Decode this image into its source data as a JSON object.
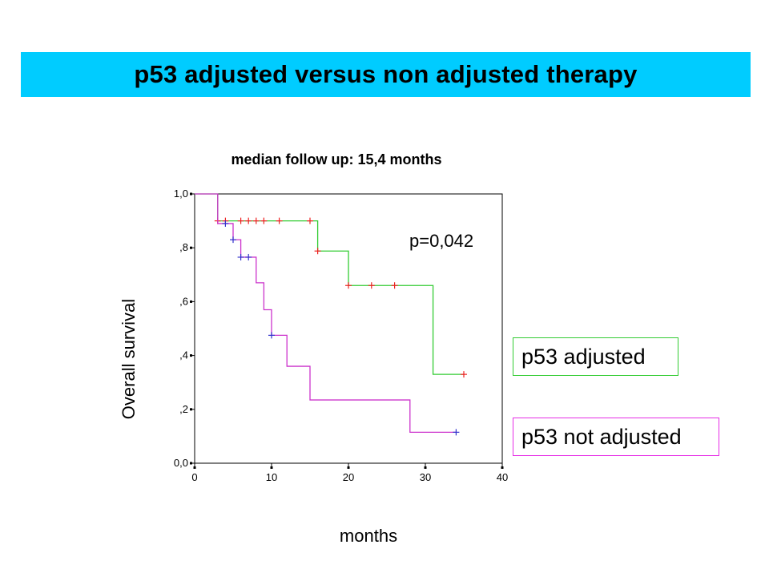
{
  "title": "p53 adjusted versus non adjusted therapy",
  "chart_data": {
    "type": "line",
    "subtitle": "median follow up: 15,4 months",
    "xlabel": "months",
    "ylabel": "Overall survival",
    "xlim": [
      0,
      40
    ],
    "ylim": [
      0,
      1
    ],
    "x_ticks": [
      0,
      10,
      20,
      30,
      40
    ],
    "x_tick_labels": [
      "0",
      "10",
      "20",
      "30",
      "40"
    ],
    "y_ticks": [
      0,
      0.2,
      0.4,
      0.6,
      0.8,
      1.0
    ],
    "y_tick_labels": [
      "0,0",
      ",2",
      ",4",
      ",6",
      ",8",
      "1,0"
    ],
    "grid": false,
    "annotation": "p=0,042",
    "series": [
      {
        "name": "p53 adjusted",
        "color": "#33cc33",
        "censor_color": "#ee2222",
        "steps": [
          [
            0,
            1.0
          ],
          [
            3,
            0.9
          ],
          [
            16,
            0.788
          ],
          [
            20,
            0.66
          ],
          [
            31,
            0.33
          ],
          [
            35,
            0.33
          ]
        ],
        "censored": [
          [
            3,
            0.9
          ],
          [
            4,
            0.9
          ],
          [
            6,
            0.9
          ],
          [
            7,
            0.9
          ],
          [
            8,
            0.9
          ],
          [
            9,
            0.9
          ],
          [
            11,
            0.9
          ],
          [
            15,
            0.9
          ],
          [
            16,
            0.788
          ],
          [
            20,
            0.66
          ],
          [
            23,
            0.66
          ],
          [
            26,
            0.66
          ],
          [
            35,
            0.33
          ]
        ]
      },
      {
        "name": "p53 not adjusted",
        "color": "#cc33cc",
        "censor_color": "#3333cc",
        "steps": [
          [
            0,
            1.0
          ],
          [
            3,
            0.89
          ],
          [
            5,
            0.83
          ],
          [
            6,
            0.765
          ],
          [
            8,
            0.67
          ],
          [
            9,
            0.57
          ],
          [
            10,
            0.475
          ],
          [
            12,
            0.36
          ],
          [
            15,
            0.235
          ],
          [
            28,
            0.115
          ],
          [
            34,
            0.115
          ]
        ],
        "censored": [
          [
            4,
            0.89
          ],
          [
            5,
            0.83
          ],
          [
            6,
            0.765
          ],
          [
            7,
            0.765
          ],
          [
            10,
            0.475
          ],
          [
            34,
            0.115
          ]
        ]
      }
    ]
  }
}
